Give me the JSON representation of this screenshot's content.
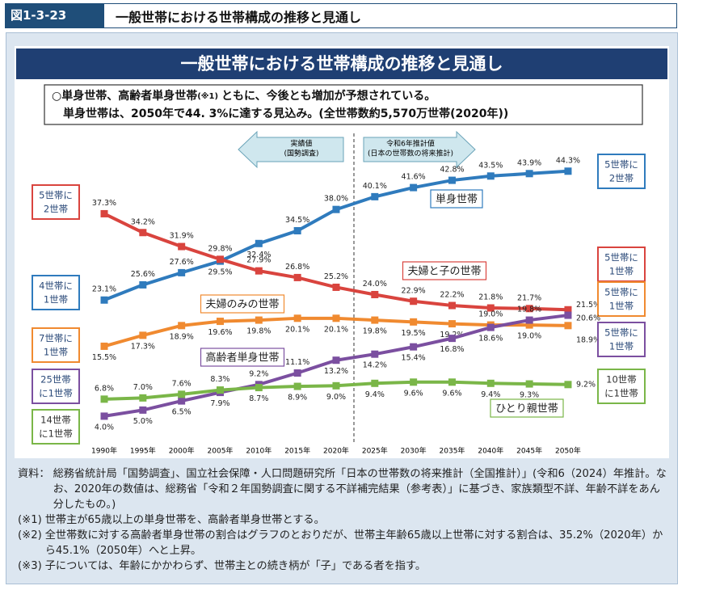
{
  "header": {
    "figure_no": "図1-3-23",
    "title": "一般世帯における世帯構成の推移と見通し"
  },
  "chart_data": {
    "type": "line",
    "title": "一般世帯における世帯構成の推移と見通し",
    "summary": [
      [
        "○単身世帯、高齢者単身世帯",
        "(※1)",
        "ともに、今後とも増加が予想されている。"
      ],
      [
        "単身世帯は、2050年で44. 3%に達する見込み。(全世帯数約5,570万世帯(2020年))"
      ]
    ],
    "periods": [
      {
        "lines": [
          "実績値",
          "(国勢調査)"
        ]
      },
      {
        "lines": [
          "令和6年推計値",
          "(日本の世帯数の将来推計)"
        ]
      }
    ],
    "categories": [
      "1990年",
      "1995年",
      "2000年",
      "2005年",
      "2010年",
      "2015年",
      "2020年",
      "2025年",
      "2030年",
      "2035年",
      "2040年",
      "2045年",
      "2050年"
    ],
    "ylim": [
      0,
      46
    ],
    "series": [
      {
        "name": "単身世帯",
        "color": "#2f7bbd",
        "values": [
          23.1,
          25.6,
          27.6,
          29.5,
          32.4,
          34.5,
          38.0,
          40.1,
          41.6,
          42.8,
          43.5,
          43.9,
          44.3
        ],
        "value_labels": [
          "23.1%",
          "25.6%",
          "27.6%",
          "29.5%",
          "32.4%",
          "34.5%",
          "38.0%",
          "40.1%",
          "41.6%",
          "42.8%",
          "43.5%",
          "43.9%",
          "44.3%"
        ],
        "start_label": [
          "4世帯に",
          "1世帯"
        ],
        "end_label": [
          "5世帯に",
          "2世帯"
        ]
      },
      {
        "name": "夫婦と子の世帯",
        "color": "#d9443e",
        "values": [
          37.3,
          34.2,
          31.9,
          29.8,
          27.9,
          26.8,
          25.2,
          24.0,
          22.9,
          22.2,
          21.8,
          21.7,
          21.5
        ],
        "value_labels": [
          "37.3%",
          "34.2%",
          "31.9%",
          "29.8%",
          "27.9%",
          "26.8%",
          "25.2%",
          "24.0%",
          "22.9%",
          "22.2%",
          "21.8%",
          "21.7%",
          "21.5%"
        ],
        "start_label": [
          "5世帯に",
          "2世帯"
        ],
        "end_label": [
          "5世帯に",
          "1世帯"
        ]
      },
      {
        "name": "夫婦のみの世帯",
        "color": "#f08a30",
        "values": [
          15.5,
          17.3,
          18.9,
          19.6,
          19.8,
          20.1,
          20.1,
          19.8,
          19.5,
          19.2,
          19.0,
          19.0,
          18.9
        ],
        "value_labels": [
          "15.5%",
          "17.3%",
          "18.9%",
          "19.6%",
          "19.8%",
          "20.1%",
          "20.1%",
          "19.8%",
          "19.5%",
          "19.2%",
          "19.0%",
          "19.0%",
          "18.9%"
        ],
        "start_label": [
          "7世帯に",
          "1世帯"
        ],
        "end_label": [
          "5世帯に",
          "1世帯"
        ]
      },
      {
        "name": "高齢者単身世帯",
        "color": "#7b4fa0",
        "values": [
          4.0,
          5.0,
          6.5,
          7.9,
          9.2,
          11.1,
          13.2,
          14.2,
          15.4,
          16.8,
          18.6,
          19.8,
          20.6
        ],
        "value_labels": [
          "4.0%",
          "5.0%",
          "6.5%",
          "7.9%",
          "9.2%",
          "11.1%",
          "13.2%",
          "14.2%",
          "15.4%",
          "16.8%",
          "18.6%",
          "19.8%",
          "20.6%"
        ],
        "start_label": [
          "25世帯",
          "に1世帯"
        ],
        "end_label": [
          "5世帯に",
          "1世帯"
        ]
      },
      {
        "name": "ひとり親世帯",
        "color": "#7ab648",
        "values": [
          6.8,
          7.0,
          7.6,
          8.3,
          8.7,
          8.9,
          9.0,
          9.4,
          9.6,
          9.6,
          9.4,
          9.3,
          9.2
        ],
        "value_labels": [
          "6.8%",
          "7.0%",
          "7.6%",
          "8.3%",
          "8.7%",
          "8.9%",
          "9.0%",
          "9.4%",
          "9.6%",
          "9.6%",
          "9.4%",
          "9.3%",
          "9.2%"
        ],
        "start_label": [
          "14世帯",
          "に1世帯"
        ],
        "end_label": [
          "10世帯",
          "に1世帯"
        ]
      }
    ]
  },
  "notes": [
    {
      "mark": "資料：",
      "text": "総務省統計局「国勢調査」、国立社会保障・人口問題研究所「日本の世帯数の将来推計（全国推計）」(令和6（2024）年推計。なお、2020年の数値は、総務省「令和２年国勢調査に関する不詳補完結果（参考表）」に基づき、家族類型不詳、年齢不詳をあん分したもの。)"
    },
    {
      "mark": "(※1)",
      "text": "世帯主が65歳以上の単身世帯を、高齢者単身世帯とする。"
    },
    {
      "mark": "(※2)",
      "text": "全世帯数に対する高齢者単身世帯の割合はグラフのとおりだが、世帯主年齢65歳以上世帯に対する割合は、35.2%（2020年）から45.1%（2050年）へと上昇。"
    },
    {
      "mark": "(※3)",
      "text": "子については、年齢にかかわらず、世帯主との続き柄が「子」である者を指す。"
    }
  ]
}
